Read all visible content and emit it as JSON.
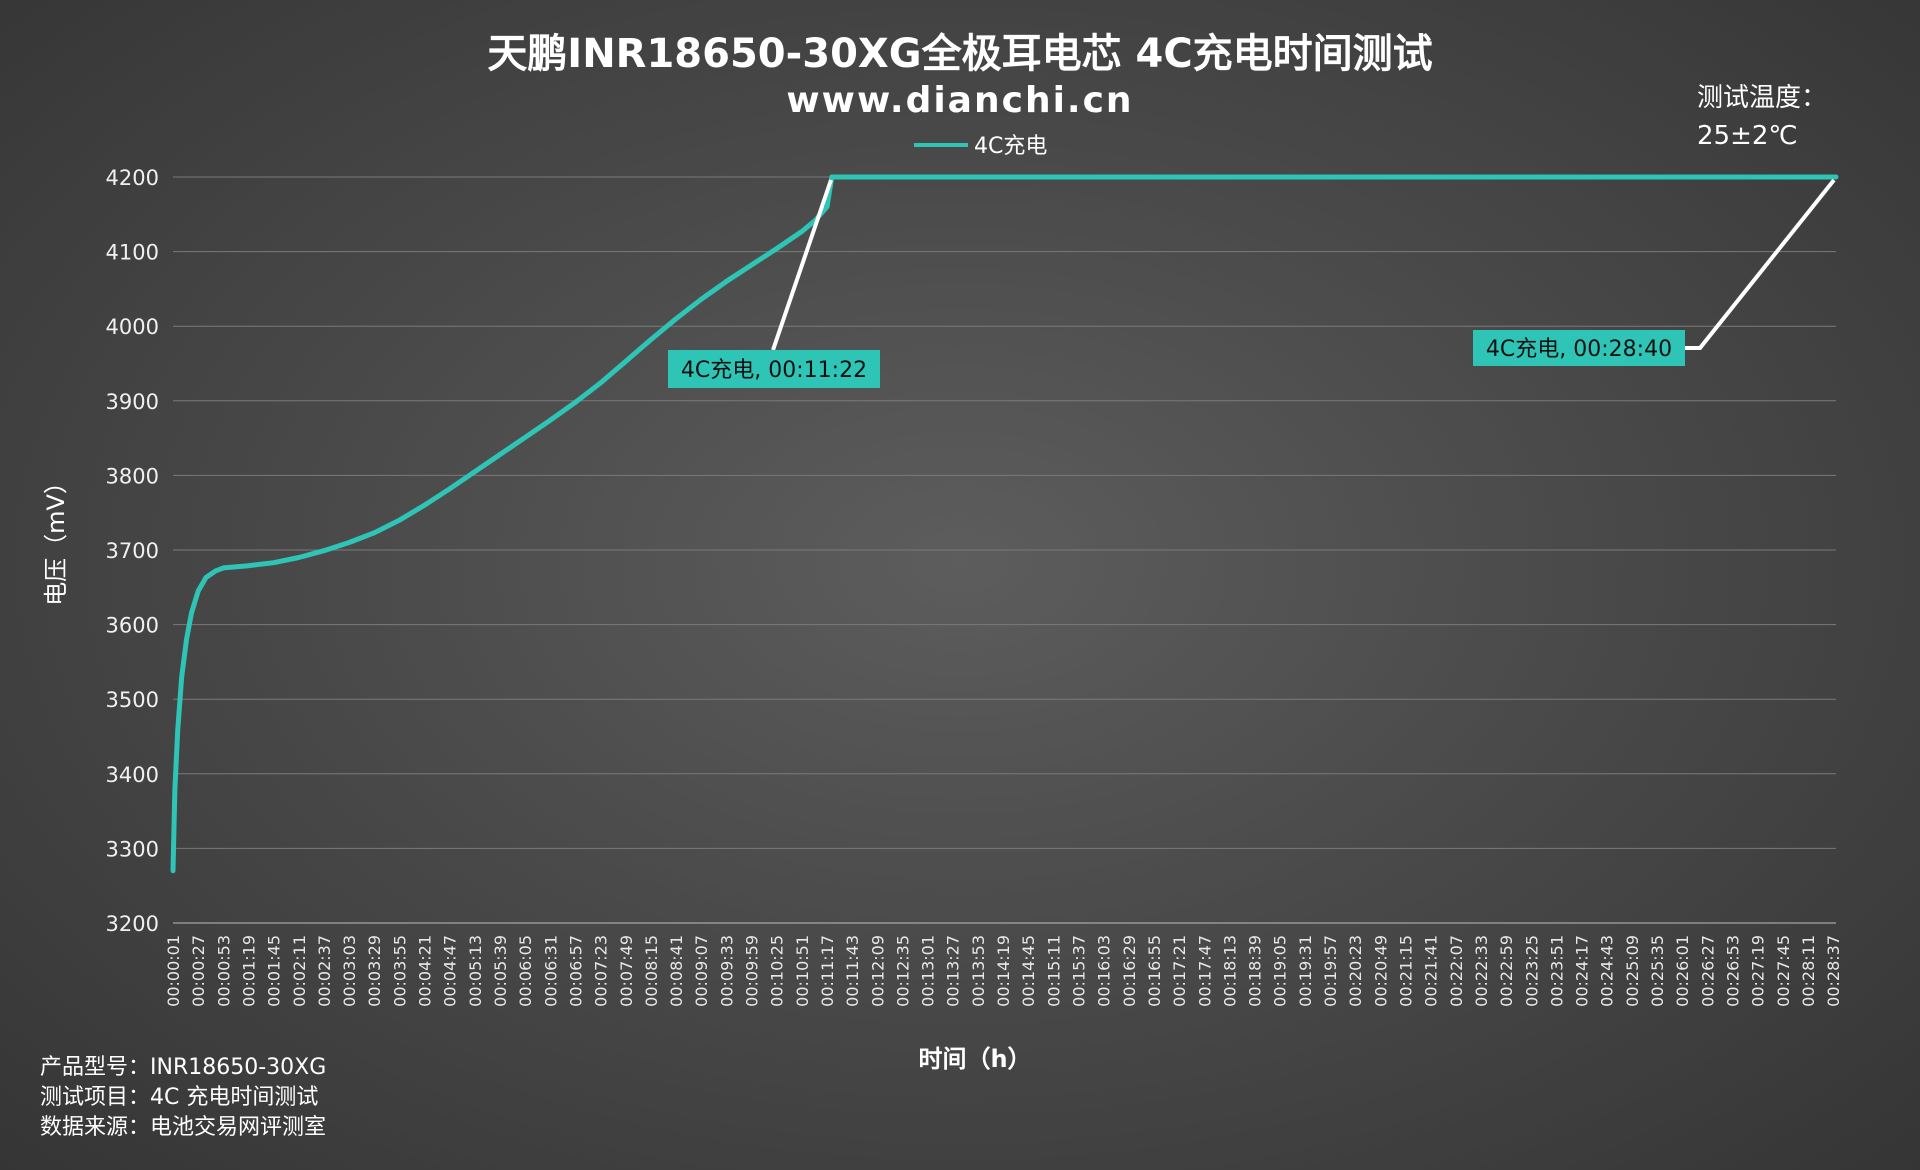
{
  "chart_data": {
    "type": "line",
    "title": "天鹏INR18650-30XG全极耳电芯 4C充电时间测试",
    "subtitle": "www.dianchi.cn",
    "xlabel": "时间（h）",
    "ylabel": "电压（mV）",
    "ylim": [
      3200,
      4200
    ],
    "yticks": [
      3200,
      3300,
      3400,
      3500,
      3600,
      3700,
      3800,
      3900,
      4000,
      4100,
      4200
    ],
    "grid": true,
    "legend_position": "top-center",
    "line_color": "#2ec4b6",
    "annotation_color": "#2ec4b6",
    "leader_color": "#ffffff",
    "x_tick_labels": [
      "00:00:01",
      "00:00:27",
      "00:00:53",
      "00:01:19",
      "00:01:45",
      "00:02:11",
      "00:02:37",
      "00:03:03",
      "00:03:29",
      "00:03:55",
      "00:04:21",
      "00:04:47",
      "00:05:13",
      "00:05:39",
      "00:06:05",
      "00:06:31",
      "00:06:57",
      "00:07:23",
      "00:07:49",
      "00:08:15",
      "00:08:41",
      "00:09:07",
      "00:09:33",
      "00:09:59",
      "00:10:25",
      "00:10:51",
      "00:11:17",
      "00:11:43",
      "00:12:09",
      "00:12:35",
      "00:13:01",
      "00:13:27",
      "00:13:53",
      "00:14:19",
      "00:14:45",
      "00:15:11",
      "00:15:37",
      "00:16:03",
      "00:16:29",
      "00:16:55",
      "00:17:21",
      "00:17:47",
      "00:18:13",
      "00:18:39",
      "00:19:05",
      "00:19:31",
      "00:19:57",
      "00:20:23",
      "00:20:49",
      "00:21:15",
      "00:21:41",
      "00:22:07",
      "00:22:33",
      "00:22:59",
      "00:23:25",
      "00:23:51",
      "00:24:17",
      "00:24:43",
      "00:25:09",
      "00:25:35",
      "00:26:01",
      "00:26:27",
      "00:26:53",
      "00:27:19",
      "00:27:45",
      "00:28:11",
      "00:28:37"
    ],
    "series": [
      {
        "name": "4C充电",
        "points": [
          [
            "00:00:01",
            3270
          ],
          [
            "00:00:03",
            3380
          ],
          [
            "00:00:06",
            3460
          ],
          [
            "00:00:10",
            3530
          ],
          [
            "00:00:15",
            3580
          ],
          [
            "00:00:20",
            3615
          ],
          [
            "00:00:27",
            3645
          ],
          [
            "00:00:35",
            3663
          ],
          [
            "00:00:45",
            3672
          ],
          [
            "00:00:53",
            3676
          ],
          [
            "00:01:19",
            3679
          ],
          [
            "00:01:45",
            3683
          ],
          [
            "00:02:11",
            3690
          ],
          [
            "00:02:37",
            3699
          ],
          [
            "00:03:03",
            3710
          ],
          [
            "00:03:29",
            3723
          ],
          [
            "00:03:55",
            3740
          ],
          [
            "00:04:21",
            3760
          ],
          [
            "00:04:47",
            3782
          ],
          [
            "00:05:13",
            3805
          ],
          [
            "00:05:39",
            3828
          ],
          [
            "00:06:05",
            3851
          ],
          [
            "00:06:31",
            3874
          ],
          [
            "00:06:57",
            3898
          ],
          [
            "00:07:23",
            3924
          ],
          [
            "00:07:49",
            3953
          ],
          [
            "00:08:15",
            3982
          ],
          [
            "00:08:41",
            4010
          ],
          [
            "00:09:07",
            4036
          ],
          [
            "00:09:33",
            4060
          ],
          [
            "00:09:59",
            4082
          ],
          [
            "00:10:25",
            4104
          ],
          [
            "00:10:51",
            4127
          ],
          [
            "00:11:05",
            4142
          ],
          [
            "00:11:17",
            4160
          ],
          [
            "00:11:22",
            4200
          ],
          [
            "00:11:43",
            4200
          ],
          [
            "00:15:00",
            4200
          ],
          [
            "00:20:00",
            4200
          ],
          [
            "00:25:00",
            4200
          ],
          [
            "00:28:40",
            4200
          ]
        ]
      }
    ],
    "annotations": [
      {
        "label": "4C充电, 00:11:22",
        "x": "00:11:22",
        "y": 4200
      },
      {
        "label": "4C充电, 00:28:40",
        "x": "00:28:40",
        "y": 4200
      }
    ],
    "temperature_note": [
      "测试温度：",
      "25±2℃"
    ],
    "footnotes": [
      "产品型号：INR18650-30XG",
      "测试项目：4C 充电时间测试",
      "数据来源：电池交易网评测室"
    ]
  }
}
